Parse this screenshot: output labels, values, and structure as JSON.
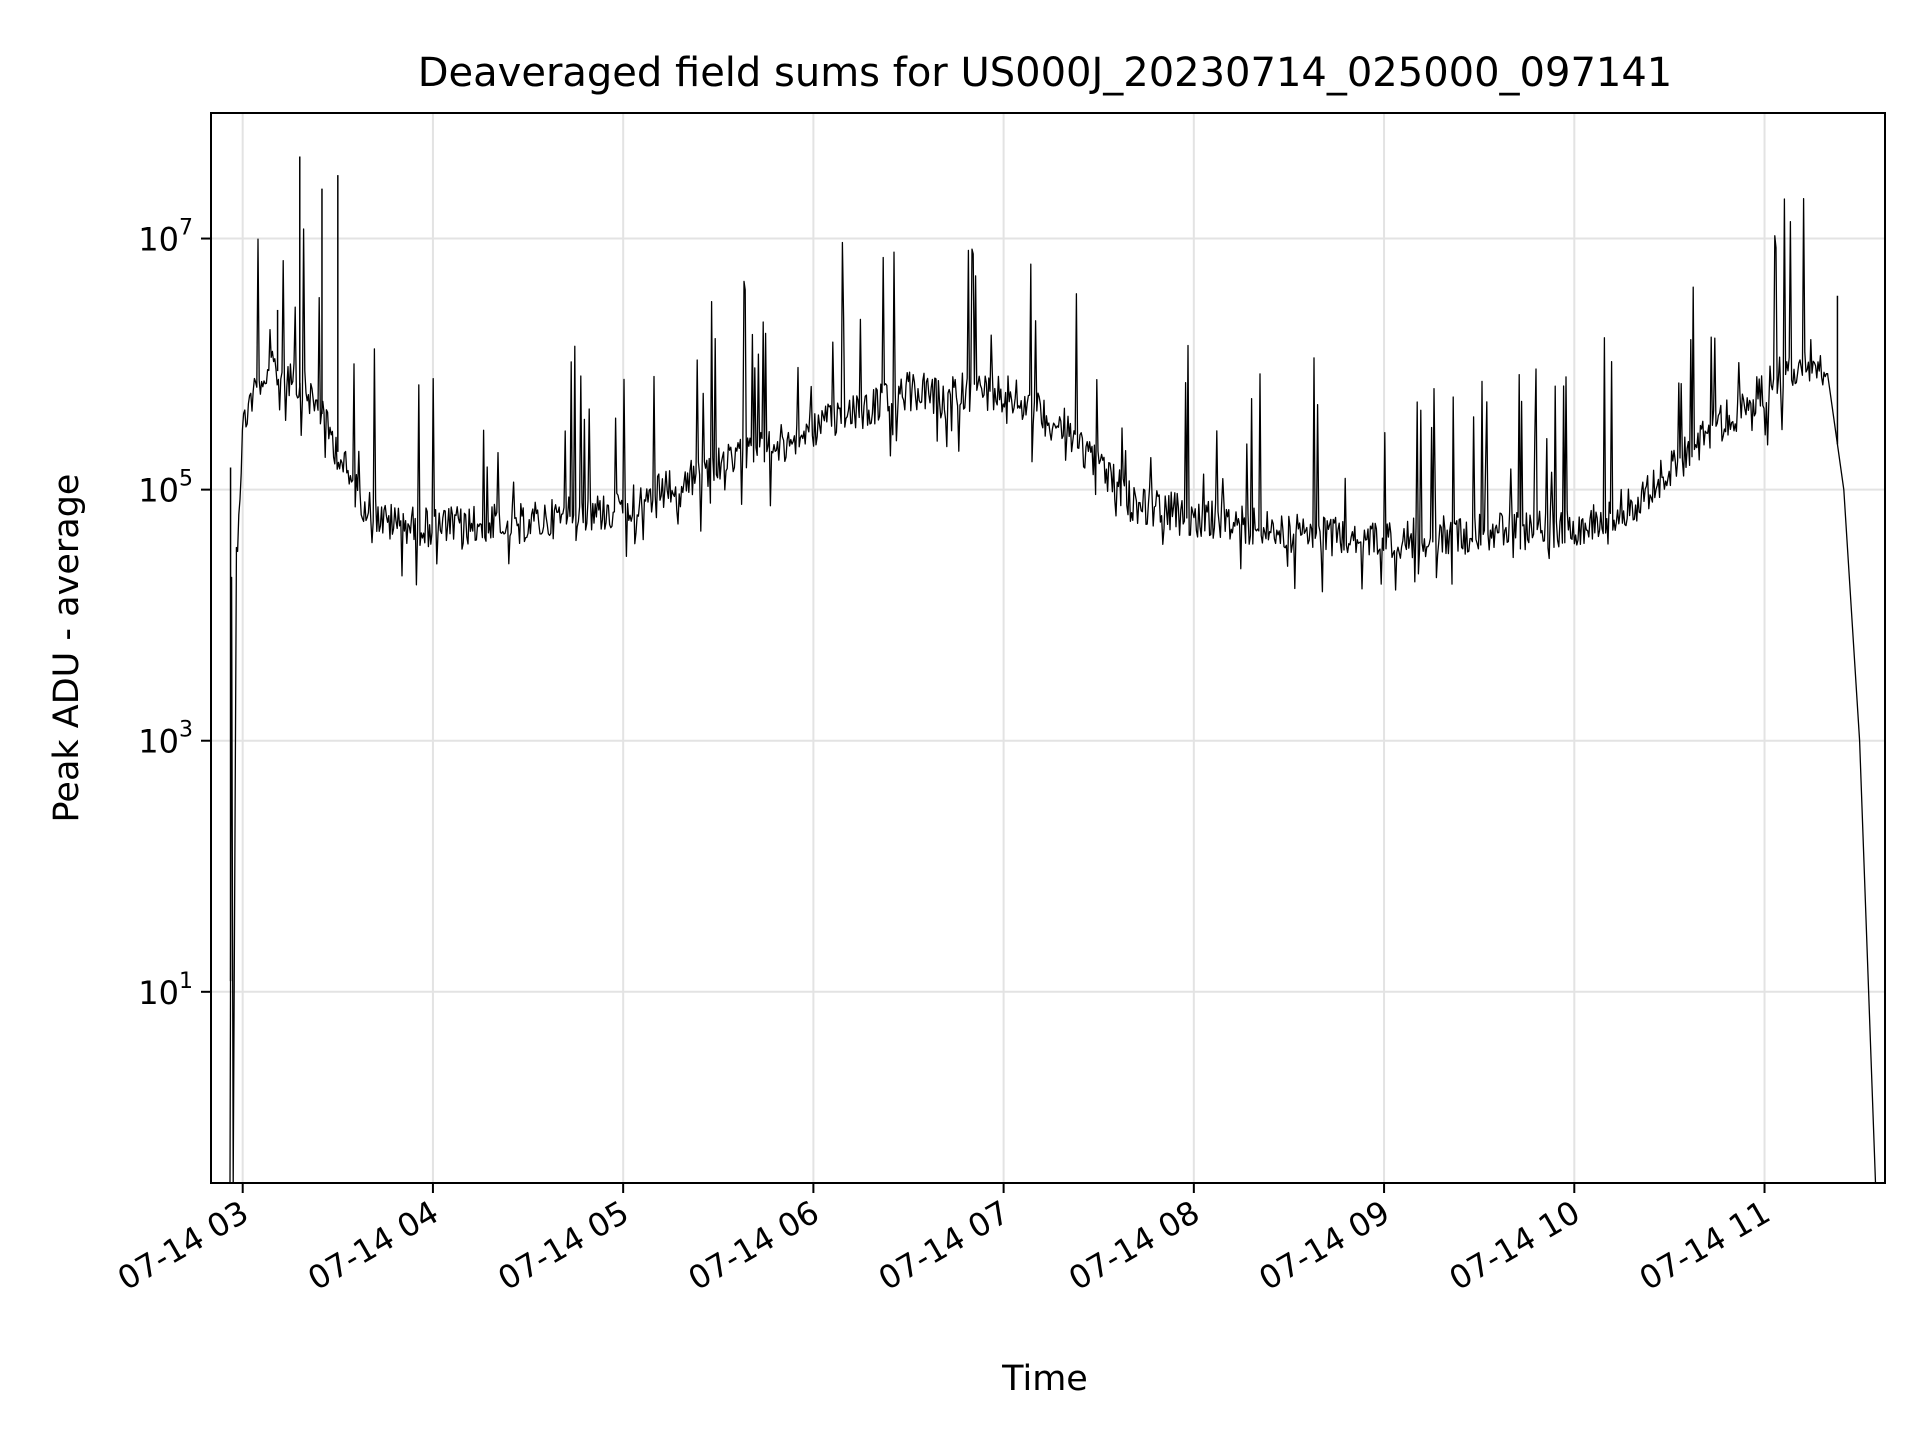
{
  "chart_data": {
    "type": "line",
    "title": "Deaveraged field sums for US000J_20230714_025000_097141",
    "xlabel": "Time",
    "ylabel": "Peak ADU - average",
    "yscale": "log",
    "grid": true,
    "legend": "none",
    "line_color": "#000000",
    "xlim": [
      "2023-07-14T02:50:00",
      "2023-07-14T11:38:00"
    ],
    "ylim": [
      0.3,
      100000000
    ],
    "x_ticks": [
      {
        "value": "2023-07-14T03:00",
        "label": "07-14 03"
      },
      {
        "value": "2023-07-14T04:00",
        "label": "07-14 04"
      },
      {
        "value": "2023-07-14T05:00",
        "label": "07-14 05"
      },
      {
        "value": "2023-07-14T06:00",
        "label": "07-14 06"
      },
      {
        "value": "2023-07-14T07:00",
        "label": "07-14 07"
      },
      {
        "value": "2023-07-14T08:00",
        "label": "07-14 08"
      },
      {
        "value": "2023-07-14T09:00",
        "label": "07-14 09"
      },
      {
        "value": "2023-07-14T10:00",
        "label": "07-14 10"
      },
      {
        "value": "2023-07-14T11:00",
        "label": "07-14 11"
      }
    ],
    "y_ticks": [
      {
        "value": 10,
        "base": "10",
        "exp": "1"
      },
      {
        "value": 1000,
        "base": "10",
        "exp": "3"
      },
      {
        "value": 100000,
        "base": "10",
        "exp": "5"
      },
      {
        "value": 10000000,
        "base": "10",
        "exp": "7"
      }
    ],
    "series": [
      {
        "x": [
          "2023-07-14T02:56:00",
          "2023-07-14T02:56:30",
          "2023-07-14T02:57:00",
          "2023-07-14T02:58:00",
          "2023-07-14T03:00:00",
          "2023-07-14T03:02:00",
          "2023-07-14T03:05:00",
          "2023-07-14T03:07:00",
          "2023-07-14T03:10:00",
          "2023-07-14T03:15:00",
          "2023-07-14T03:20:00",
          "2023-07-14T03:25:00",
          "2023-07-14T03:30:00",
          "2023-07-14T03:35:00",
          "2023-07-14T03:40:00",
          "2023-07-14T03:45:00",
          "2023-07-14T04:00:00",
          "2023-07-14T04:30:00",
          "2023-07-14T05:00:00",
          "2023-07-14T05:30:00",
          "2023-07-14T06:00:00",
          "2023-07-14T06:30:00",
          "2023-07-14T07:00:00",
          "2023-07-14T07:20:00",
          "2023-07-14T07:40:00",
          "2023-07-14T08:00:00",
          "2023-07-14T08:30:00",
          "2023-07-14T09:00:00",
          "2023-07-14T09:30:00",
          "2023-07-14T10:00:00",
          "2023-07-14T10:20:00",
          "2023-07-14T10:40:00",
          "2023-07-14T10:55:00",
          "2023-07-14T11:05:00",
          "2023-07-14T11:10:00",
          "2023-07-14T11:15:00",
          "2023-07-14T11:20:00",
          "2023-07-14T11:25:00",
          "2023-07-14T11:30:00",
          "2023-07-14T11:35:00"
        ],
        "y": [
          0.3,
          20000,
          0.3,
          30000,
          300000,
          500000,
          700000,
          800000,
          900000,
          800000,
          600000,
          400000,
          200000,
          100000,
          70000,
          55000,
          50000,
          55000,
          70000,
          150000,
          300000,
          600000,
          600000,
          300000,
          80000,
          60000,
          45000,
          40000,
          45000,
          50000,
          80000,
          250000,
          500000,
          800000,
          1000000,
          1200000,
          800000,
          100000,
          1000,
          0.3
        ]
      }
    ],
    "annotations": [
      {
        "x": "2023-07-14T02:56:10",
        "y": 150000,
        "text": ""
      },
      {
        "x": "2023-07-14T03:18:00",
        "y": 45000000,
        "text": ""
      },
      {
        "x": "2023-07-14T03:25:00",
        "y": 25000000,
        "text": ""
      },
      {
        "x": "2023-07-14T03:30:00",
        "y": 32000000,
        "text": ""
      },
      {
        "x": "2023-07-14T03:11:00",
        "y": 2700000,
        "text": ""
      },
      {
        "x": "2023-07-14T11:23:00",
        "y": 3500000,
        "text": ""
      }
    ]
  }
}
